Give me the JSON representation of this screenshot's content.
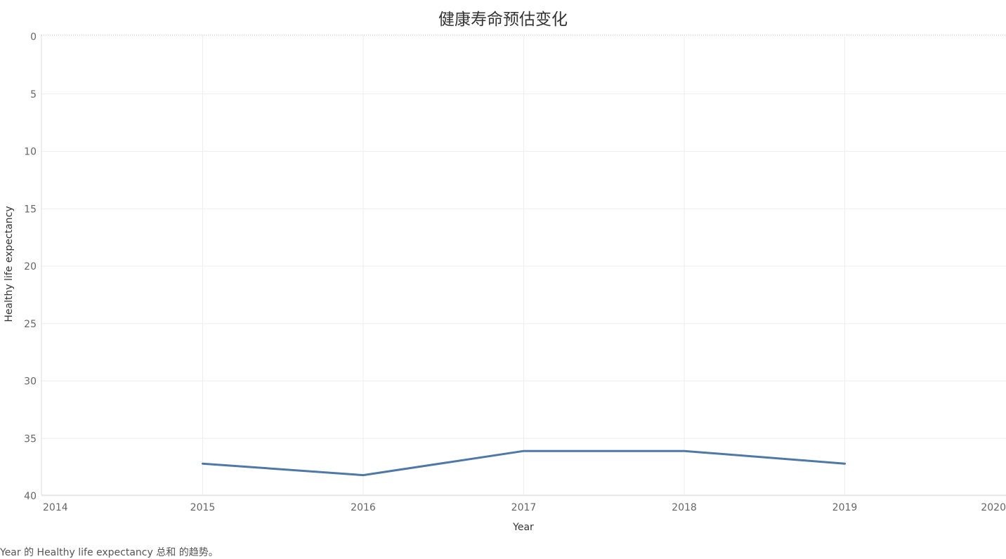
{
  "chart_data": {
    "type": "line",
    "title": "健康寿命预估变化",
    "xlabel": "Year",
    "ylabel": "Healthy life expectancy",
    "x_ticks": [
      "2014",
      "2015",
      "2016",
      "2017",
      "2018",
      "2019",
      "2020"
    ],
    "y_ticks": [
      "0",
      "5",
      "10",
      "15",
      "20",
      "25",
      "30",
      "35",
      "40"
    ],
    "xlim": [
      2014,
      2020
    ],
    "ylim": [
      0,
      40
    ],
    "y_axis_reversed": true,
    "grid": true,
    "series": [
      {
        "x": [
          2015,
          2016,
          2017,
          2018,
          2019
        ],
        "values": [
          37.2,
          38.2,
          36.1,
          36.1,
          37.2
        ],
        "color": "#4e79a7"
      }
    ]
  },
  "caption": "Year 的 Healthy life expectancy 总和 的趋势。"
}
